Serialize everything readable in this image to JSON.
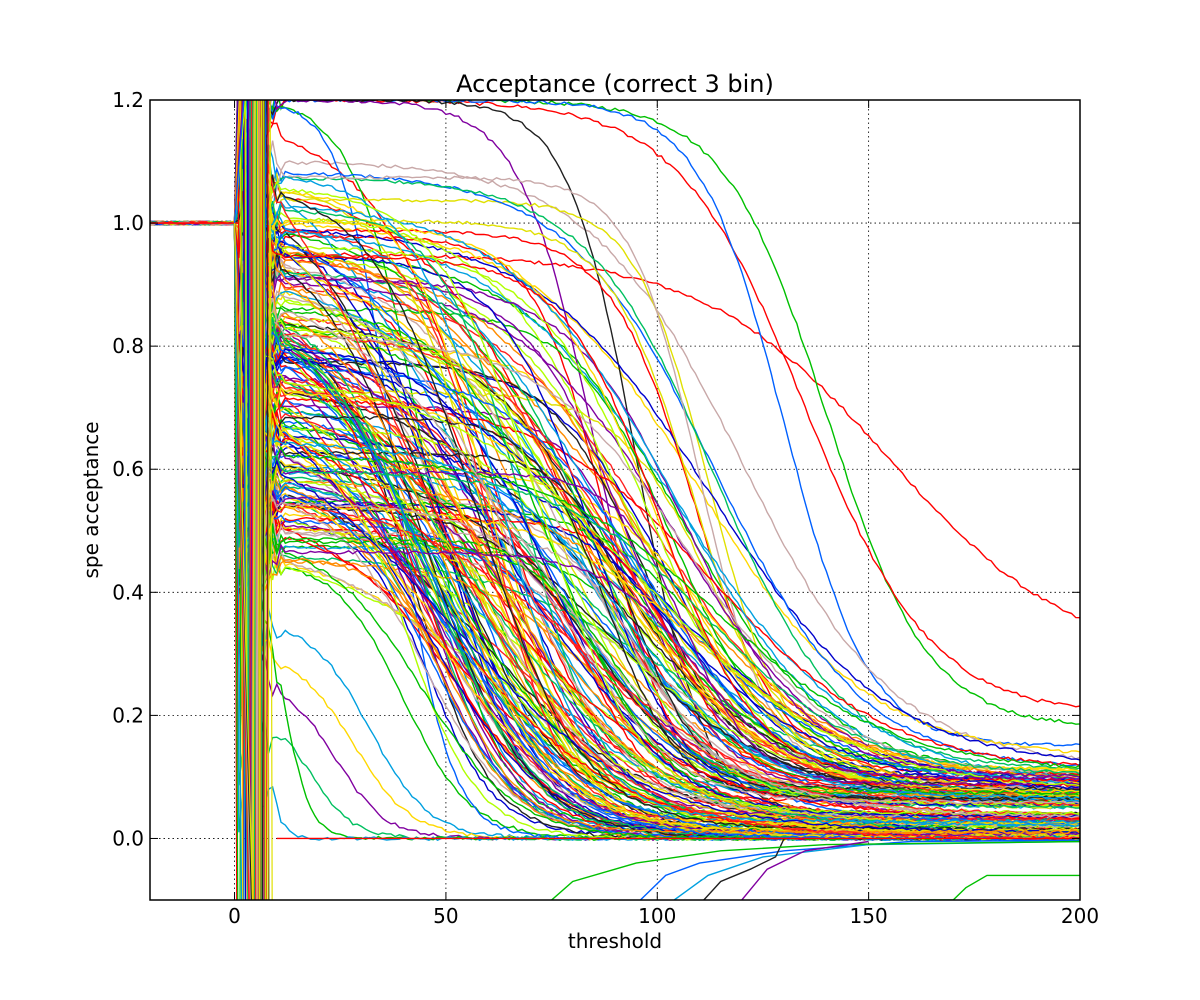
{
  "chart_data": {
    "type": "line",
    "title": "Acceptance (correct 3 bin)",
    "xlabel": "threshold",
    "ylabel": "spe acceptance",
    "xlim": [
      -20,
      200
    ],
    "ylim": [
      -0.1,
      1.2
    ],
    "xticks": [
      0,
      50,
      100,
      150,
      200
    ],
    "xtick_labels": [
      "0",
      "50",
      "100",
      "150",
      "200"
    ],
    "yticks": [
      0.0,
      0.2,
      0.4,
      0.6,
      0.8,
      1.0,
      1.2
    ],
    "ytick_labels": [
      "0.0",
      "0.2",
      "0.4",
      "0.6",
      "0.8",
      "1.0",
      "1.2"
    ],
    "grid": true,
    "legend": "none",
    "description_of_curves": "Roughly 300 curves (one per channel); each equals 1.0 for threshold below about 1, then decays toward 0 with channel-dependent scale and starting level. A few curves dip below 0 near the right side.",
    "colors": [
      "#ff0000",
      "#00c000",
      "#0000cc",
      "#ffd800",
      "#00a0e0",
      "#ff8c00",
      "#8000a0",
      "#b0ff00",
      "#0060ff",
      "#00c060",
      "#ff2020",
      "#c8a8a8",
      "#202020",
      "#e0e000"
    ],
    "series": [
      {
        "color": "#ff0000",
        "start": 0.95,
        "x0": 155,
        "k": 22,
        "floor": 0.28
      },
      {
        "color": "#00c000",
        "start": 1.2,
        "x0": 140,
        "k": 12,
        "floor": 0.18
      },
      {
        "color": "#ff0000",
        "start": 1.2,
        "x0": 135,
        "k": 15,
        "floor": 0.2
      },
      {
        "color": "#0060ff",
        "start": 1.2,
        "x0": 130,
        "k": 10,
        "floor": 0.15
      },
      {
        "color": "#c8a8a8",
        "start": 1.1,
        "x0": 120,
        "k": 18,
        "floor": 0.12
      },
      {
        "color": "#ffd800",
        "start": 1.0,
        "x0": 110,
        "k": 20,
        "floor": 0.13
      },
      {
        "color": "#00c000",
        "start": 0.95,
        "x0": 105,
        "k": 18,
        "floor": 0.1
      },
      {
        "color": "#ff8c00",
        "start": 0.9,
        "x0": 95,
        "k": 22,
        "floor": 0.09
      },
      {
        "color": "#ff2020",
        "start": 0.85,
        "x0": 90,
        "k": 18,
        "floor": 0.08
      },
      {
        "color": "#b0ff00",
        "start": 0.88,
        "x0": 85,
        "k": 20,
        "floor": 0.07
      },
      {
        "color": "#00a0e0",
        "start": 0.92,
        "x0": 80,
        "k": 15,
        "floor": 0.05
      },
      {
        "color": "#ff0000",
        "start": 1.05,
        "x0": 78,
        "k": 17,
        "floor": 0.06
      },
      {
        "color": "#e0e000",
        "start": 0.97,
        "x0": 75,
        "k": 16,
        "floor": 0.04
      },
      {
        "color": "#00c060",
        "start": 0.82,
        "x0": 72,
        "k": 18,
        "floor": 0.05
      },
      {
        "color": "#0000cc",
        "start": 0.78,
        "x0": 68,
        "k": 12,
        "floor": 0.02
      },
      {
        "color": "#8000a0",
        "start": 0.75,
        "x0": 65,
        "k": 10,
        "floor": 0.01
      },
      {
        "color": "#ff8c00",
        "start": 0.96,
        "x0": 70,
        "k": 14,
        "floor": 0.03
      },
      {
        "color": "#00c000",
        "start": 0.7,
        "x0": 62,
        "k": 11,
        "floor": 0.02
      },
      {
        "color": "#0060ff",
        "start": 0.68,
        "x0": 60,
        "k": 10,
        "floor": 0.01
      },
      {
        "color": "#ff0000",
        "start": 0.93,
        "x0": 62,
        "k": 12,
        "floor": 0.02
      },
      {
        "color": "#ffd800",
        "start": 0.9,
        "x0": 58,
        "k": 13,
        "floor": 0.02
      },
      {
        "color": "#0000cc",
        "start": 0.64,
        "x0": 55,
        "k": 9,
        "floor": 0.01
      },
      {
        "color": "#00a0e0",
        "start": 0.6,
        "x0": 52,
        "k": 9,
        "floor": 0.01
      },
      {
        "color": "#b0ff00",
        "start": 0.85,
        "x0": 56,
        "k": 12,
        "floor": 0.02
      },
      {
        "color": "#8000a0",
        "start": 0.58,
        "x0": 50,
        "k": 8,
        "floor": 0.01
      },
      {
        "color": "#00c060",
        "start": 0.55,
        "x0": 48,
        "k": 9,
        "floor": 0.01
      },
      {
        "color": "#ff2020",
        "start": 0.8,
        "x0": 54,
        "k": 11,
        "floor": 0.01
      },
      {
        "color": "#0000cc",
        "start": 0.52,
        "x0": 46,
        "k": 8,
        "floor": 0.005
      },
      {
        "color": "#00c000",
        "start": 0.45,
        "x0": 40,
        "k": 8,
        "floor": 0.0
      },
      {
        "color": "#ff8c00",
        "start": 0.75,
        "x0": 50,
        "k": 10,
        "floor": 0.01
      },
      {
        "color": "#00a0e0",
        "start": 0.35,
        "x0": 32,
        "k": 7,
        "floor": 0.0
      },
      {
        "color": "#ffd800",
        "start": 0.3,
        "x0": 28,
        "k": 7,
        "floor": 0.0
      },
      {
        "color": "#8000a0",
        "start": 0.25,
        "x0": 24,
        "k": 6,
        "floor": 0.0
      },
      {
        "color": "#00c060",
        "start": 0.2,
        "x0": 18,
        "k": 5,
        "floor": 0.0
      },
      {
        "color": "#ff0000",
        "start": 1.15,
        "x0": 60,
        "k": 14,
        "floor": 0.03
      },
      {
        "color": "#00c000",
        "start": 1.2,
        "x0": 45,
        "k": 8,
        "floor": 0.02
      },
      {
        "color": "#0060ff",
        "start": 1.2,
        "x0": 38,
        "k": 6,
        "floor": 0.0
      },
      {
        "color": "#202020",
        "start": 1.2,
        "x0": 95,
        "k": 8,
        "floor": 0.04
      },
      {
        "color": "#8000a0",
        "start": 1.2,
        "x0": 86,
        "k": 9,
        "floor": 0.03
      },
      {
        "color": "#ff2020",
        "start": 0.9,
        "x0": 100,
        "k": 20,
        "floor": 0.08
      },
      {
        "color": "#b0ff00",
        "start": 0.95,
        "x0": 95,
        "k": 18,
        "floor": 0.07
      },
      {
        "color": "#e0e000",
        "start": 0.85,
        "x0": 88,
        "k": 16,
        "floor": 0.05
      },
      {
        "color": "#00c000",
        "start": 0.4,
        "x0": 12,
        "k": 3,
        "floor": 0.0
      },
      {
        "color": "#00a0e0",
        "start": 0.15,
        "x0": 8,
        "k": 2,
        "floor": 0.0
      }
    ],
    "negative_series": [
      {
        "color": "#00c000",
        "points": [
          [
            150,
            -0.1
          ],
          [
            170,
            -0.1
          ],
          [
            173,
            -0.08
          ],
          [
            178,
            -0.06
          ],
          [
            200,
            -0.06
          ]
        ]
      },
      {
        "color": "#0060ff",
        "points": [
          [
            96,
            -0.1
          ],
          [
            102,
            -0.06
          ],
          [
            110,
            -0.04
          ],
          [
            130,
            -0.02
          ],
          [
            160,
            -0.005
          ],
          [
            200,
            -0.003
          ]
        ]
      },
      {
        "color": "#00a0e0",
        "points": [
          [
            104,
            -0.1
          ],
          [
            112,
            -0.06
          ],
          [
            125,
            -0.03
          ],
          [
            150,
            -0.01
          ],
          [
            200,
            -0.005
          ]
        ]
      },
      {
        "color": "#202020",
        "points": [
          [
            111,
            -0.1
          ],
          [
            115,
            -0.07
          ],
          [
            122,
            -0.05
          ],
          [
            128,
            -0.03
          ],
          [
            130,
            -0.0
          ]
        ]
      },
      {
        "color": "#00c000",
        "points": [
          [
            75,
            -0.1
          ],
          [
            80,
            -0.07
          ],
          [
            95,
            -0.04
          ],
          [
            115,
            -0.02
          ],
          [
            140,
            -0.01
          ],
          [
            200,
            -0.005
          ]
        ]
      },
      {
        "color": "#8000a0",
        "points": [
          [
            120,
            -0.1
          ],
          [
            126,
            -0.05
          ],
          [
            135,
            -0.02
          ],
          [
            150,
            -0.005
          ]
        ]
      }
    ]
  }
}
